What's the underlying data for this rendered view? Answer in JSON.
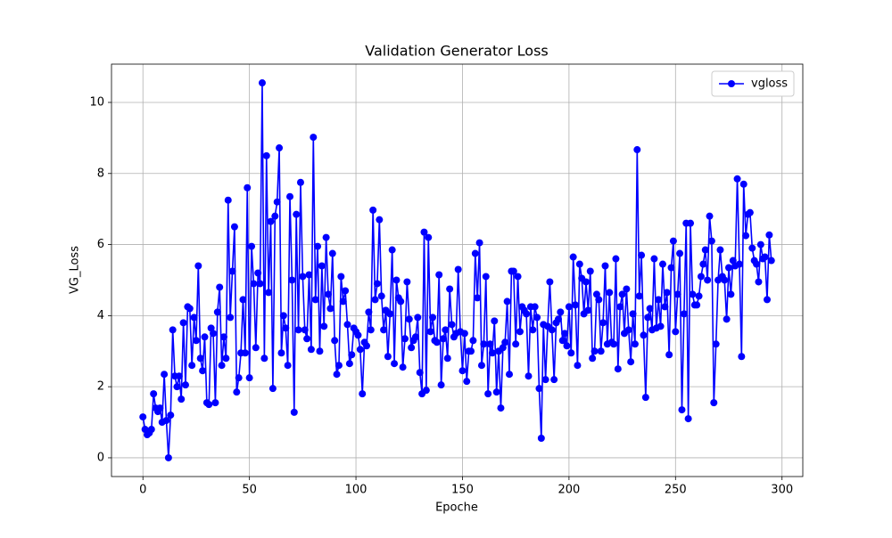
{
  "chart_data": {
    "type": "line",
    "title": "Validation Generator Loss",
    "xlabel": "Epoche",
    "ylabel": "VG_Loss",
    "x": [
      0,
      1,
      2,
      3,
      4,
      5,
      6,
      7,
      8,
      9,
      10,
      11,
      12,
      13,
      14,
      15,
      16,
      17,
      18,
      19,
      20,
      21,
      22,
      23,
      24,
      25,
      26,
      27,
      28,
      29,
      30,
      31,
      32,
      33,
      34,
      35,
      36,
      37,
      38,
      39,
      40,
      41,
      42,
      43,
      44,
      45,
      46,
      47,
      48,
      49,
      50,
      51,
      52,
      53,
      54,
      55,
      56,
      57,
      58,
      59,
      60,
      61,
      62,
      63,
      64,
      65,
      66,
      67,
      68,
      69,
      70,
      71,
      72,
      73,
      74,
      75,
      76,
      77,
      78,
      79,
      80,
      81,
      82,
      83,
      84,
      85,
      86,
      87,
      88,
      89,
      90,
      91,
      92,
      93,
      94,
      95,
      96,
      97,
      98,
      99,
      100,
      101,
      102,
      103,
      104,
      105,
      106,
      107,
      108,
      109,
      110,
      111,
      112,
      113,
      114,
      115,
      116,
      117,
      118,
      119,
      120,
      121,
      122,
      123,
      124,
      125,
      126,
      127,
      128,
      129,
      130,
      131,
      132,
      133,
      134,
      135,
      136,
      137,
      138,
      139,
      140,
      141,
      142,
      143,
      144,
      145,
      146,
      147,
      148,
      149,
      150,
      151,
      152,
      153,
      154,
      155,
      156,
      157,
      158,
      159,
      160,
      161,
      162,
      163,
      164,
      165,
      166,
      167,
      168,
      169,
      170,
      171,
      172,
      173,
      174,
      175,
      176,
      177,
      178,
      179,
      180,
      181,
      182,
      183,
      184,
      185,
      186,
      187,
      188,
      189,
      190,
      191,
      192,
      193,
      194,
      195,
      196,
      197,
      198,
      199,
      200,
      201,
      202,
      203,
      204,
      205,
      206,
      207,
      208,
      209,
      210,
      211,
      212,
      213,
      214,
      215,
      216,
      217,
      218,
      219,
      220,
      221,
      222,
      223,
      224,
      225,
      226,
      227,
      228,
      229,
      230,
      231,
      232,
      233,
      234,
      235,
      236,
      237,
      238,
      239,
      240,
      241,
      242,
      243,
      244,
      245,
      246,
      247,
      248,
      249,
      250,
      251,
      252,
      253,
      254,
      255,
      256,
      257,
      258,
      259,
      260,
      261,
      262,
      263,
      264,
      265,
      266,
      267,
      268,
      269,
      270,
      271,
      272,
      273,
      274,
      275,
      276,
      277,
      278,
      279,
      280,
      281,
      282,
      283,
      284,
      285,
      286,
      287,
      288,
      289,
      290,
      291,
      292,
      293,
      294,
      295
    ],
    "series": [
      {
        "name": "vgloss",
        "color": "#0000ff",
        "values": [
          1.15,
          0.8,
          0.65,
          0.7,
          0.8,
          1.8,
          1.4,
          1.3,
          1.4,
          1.0,
          2.35,
          1.05,
          0.0,
          1.2,
          3.6,
          2.3,
          2.0,
          2.3,
          1.65,
          3.8,
          2.05,
          4.25,
          4.2,
          2.6,
          3.95,
          3.3,
          5.4,
          2.8,
          2.45,
          3.4,
          1.55,
          1.5,
          3.65,
          3.5,
          1.55,
          4.1,
          4.8,
          2.6,
          3.4,
          2.8,
          7.25,
          3.95,
          5.25,
          6.5,
          1.85,
          2.25,
          2.95,
          4.45,
          2.95,
          7.6,
          2.25,
          5.95,
          4.9,
          3.1,
          5.2,
          4.9,
          10.55,
          2.8,
          8.5,
          4.65,
          6.65,
          1.95,
          6.8,
          7.2,
          8.72,
          2.95,
          4.0,
          3.65,
          2.6,
          7.35,
          5.0,
          1.28,
          6.85,
          3.6,
          7.75,
          5.1,
          3.6,
          3.35,
          5.15,
          3.05,
          9.02,
          4.45,
          5.95,
          3.0,
          5.4,
          3.7,
          6.2,
          4.6,
          4.2,
          5.75,
          3.3,
          2.35,
          2.6,
          5.1,
          4.4,
          4.7,
          3.75,
          2.65,
          2.9,
          3.65,
          3.55,
          3.45,
          3.05,
          1.8,
          3.25,
          3.15,
          4.1,
          3.6,
          6.97,
          4.45,
          4.9,
          6.7,
          4.55,
          3.6,
          4.15,
          2.85,
          4.05,
          5.85,
          2.65,
          5.0,
          4.5,
          4.4,
          2.55,
          3.35,
          4.95,
          3.9,
          3.1,
          3.3,
          3.4,
          3.95,
          2.4,
          1.8,
          6.35,
          1.9,
          6.2,
          3.55,
          3.95,
          3.3,
          3.25,
          5.15,
          2.05,
          3.35,
          3.6,
          2.8,
          4.75,
          3.75,
          3.4,
          3.5,
          5.3,
          3.55,
          2.45,
          3.5,
          2.15,
          3.0,
          3.0,
          3.3,
          5.75,
          4.5,
          6.05,
          2.6,
          3.2,
          5.1,
          1.8,
          3.2,
          2.95,
          3.85,
          1.85,
          3.0,
          1.4,
          3.1,
          3.25,
          4.4,
          2.35,
          5.25,
          5.25,
          3.2,
          5.1,
          3.55,
          4.25,
          4.15,
          4.05,
          2.3,
          4.25,
          3.6,
          4.25,
          3.95,
          1.95,
          0.55,
          3.75,
          2.2,
          3.7,
          4.95,
          3.6,
          2.2,
          3.8,
          3.9,
          4.1,
          3.3,
          3.5,
          3.15,
          4.25,
          2.95,
          5.65,
          4.3,
          2.6,
          5.45,
          5.05,
          4.05,
          4.95,
          4.15,
          5.25,
          2.8,
          3.0,
          4.6,
          4.45,
          3.0,
          3.8,
          5.4,
          3.2,
          4.65,
          3.25,
          3.2,
          5.6,
          2.5,
          4.25,
          4.6,
          3.5,
          4.75,
          3.6,
          2.7,
          4.05,
          3.2,
          8.67,
          4.55,
          5.7,
          3.45,
          1.7,
          3.95,
          4.2,
          3.6,
          5.6,
          3.65,
          4.45,
          3.7,
          5.45,
          4.25,
          4.65,
          2.9,
          5.35,
          6.1,
          3.55,
          4.6,
          5.75,
          1.35,
          4.05,
          6.6,
          1.1,
          6.6,
          4.6,
          4.3,
          4.3,
          4.55,
          5.1,
          5.45,
          5.85,
          5.0,
          6.8,
          6.1,
          1.55,
          3.2,
          5.0,
          5.85,
          5.1,
          5.0,
          3.9,
          5.35,
          4.6,
          5.55,
          5.4,
          7.85,
          5.45,
          2.85,
          7.7,
          6.25,
          6.85,
          6.9,
          5.9,
          5.55,
          5.45,
          4.95,
          6.0,
          5.6,
          5.65,
          4.45,
          6.27,
          5.55
        ]
      }
    ],
    "xlim": [
      -14.75,
      309.75
    ],
    "xticks": [
      0,
      50,
      100,
      150,
      200,
      250,
      300
    ],
    "ylim": [
      -0.5275,
      11.0775
    ],
    "yticks": [
      0,
      2,
      4,
      6,
      8,
      10
    ],
    "grid": true,
    "legend": "upper right",
    "marker": "circle"
  }
}
